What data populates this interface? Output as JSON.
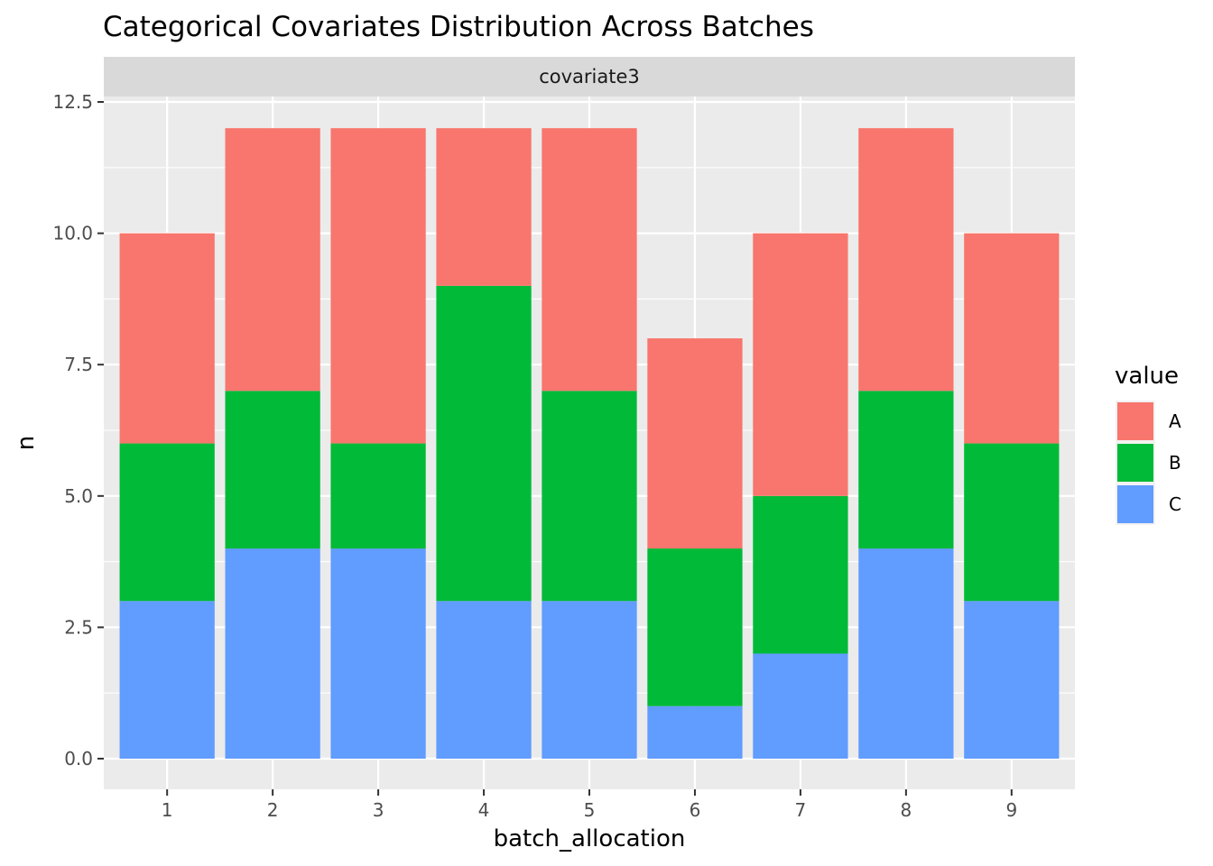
{
  "chart_data": {
    "type": "bar",
    "stacked": true,
    "title": "Categorical Covariates Distribution Across Batches",
    "facet_label": "covariate3",
    "xlabel": "batch_allocation",
    "ylabel": "n",
    "categories": [
      "1",
      "2",
      "3",
      "4",
      "5",
      "6",
      "7",
      "8",
      "9"
    ],
    "series": [
      {
        "name": "A",
        "color": "#F8766D",
        "values": [
          4,
          5,
          6,
          3,
          5,
          4,
          5,
          5,
          4
        ]
      },
      {
        "name": "B",
        "color": "#00BA38",
        "values": [
          3,
          3,
          2,
          6,
          4,
          3,
          3,
          3,
          3
        ]
      },
      {
        "name": "C",
        "color": "#619CFF",
        "values": [
          3,
          4,
          4,
          3,
          3,
          1,
          2,
          4,
          3
        ]
      }
    ],
    "ylim": [
      -0.6,
      12.5
    ],
    "yticks": [
      0.0,
      2.5,
      5.0,
      7.5,
      10.0,
      12.5
    ],
    "ytick_labels": [
      "0.0",
      "2.5",
      "5.0",
      "7.5",
      "10.0",
      "12.5"
    ],
    "legend": {
      "title": "value",
      "position": "right",
      "labels": [
        "A",
        "B",
        "C"
      ]
    },
    "grid": true,
    "panel_background": "#EBEBEB",
    "strip_background": "#D9D9D9"
  }
}
